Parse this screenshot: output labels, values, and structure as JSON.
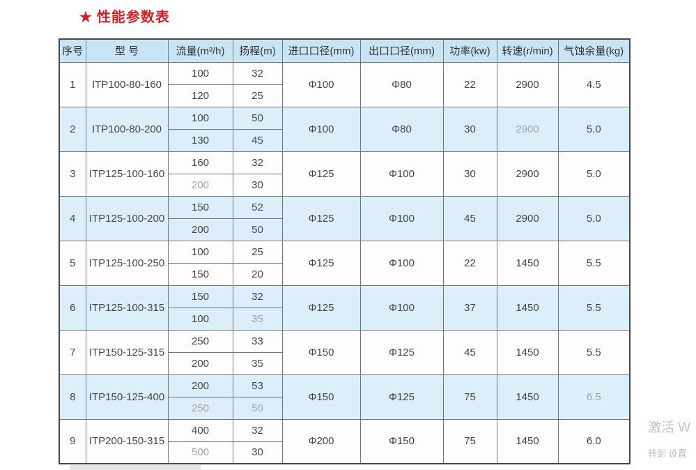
{
  "title": {
    "star": "★",
    "text": "性能参数表"
  },
  "colors": {
    "title_red": "#cc2127",
    "header_bg": "#c9e4f4",
    "alt_row_bg": "#dceef9",
    "border": "#757575",
    "muted_text": "#a3a3a3"
  },
  "table": {
    "headers": [
      "序号",
      "型 号",
      "流量(m³/h)",
      "扬程(m)",
      "进口口径(mm)",
      "出口口径(mm)",
      "功率(kw)",
      "转速(r/min)",
      "气蚀余量(kg)"
    ],
    "rows": [
      {
        "no": "1",
        "model": "ITP100-80-160",
        "flow": [
          "100",
          "120"
        ],
        "head": [
          "32",
          "25"
        ],
        "inlet": "Φ100",
        "outlet": "Φ80",
        "power": "22",
        "speed": "2900",
        "npsh": "4.5",
        "muted": []
      },
      {
        "no": "2",
        "model": "ITP100-80-200",
        "flow": [
          "100",
          "130"
        ],
        "head": [
          "50",
          "45"
        ],
        "inlet": "Φ100",
        "outlet": "Φ80",
        "power": "30",
        "speed": "2900",
        "npsh": "5.0",
        "muted": [
          "speed"
        ]
      },
      {
        "no": "3",
        "model": "ITP125-100-160",
        "flow": [
          "160",
          "200"
        ],
        "head": [
          "32",
          "30"
        ],
        "inlet": "Φ125",
        "outlet": "Φ100",
        "power": "30",
        "speed": "2900",
        "npsh": "5.0",
        "muted": [
          "flow2"
        ]
      },
      {
        "no": "4",
        "model": "ITP125-100-200",
        "flow": [
          "150",
          "200"
        ],
        "head": [
          "52",
          "50"
        ],
        "inlet": "Φ125",
        "outlet": "Φ100",
        "power": "45",
        "speed": "2900",
        "npsh": "5.0",
        "muted": []
      },
      {
        "no": "5",
        "model": "ITP125-100-250",
        "flow": [
          "100",
          "150"
        ],
        "head": [
          "25",
          "20"
        ],
        "inlet": "Φ125",
        "outlet": "Φ100",
        "power": "22",
        "speed": "1450",
        "npsh": "5.5",
        "muted": []
      },
      {
        "no": "6",
        "model": "ITP125-100-315",
        "flow": [
          "150",
          "100"
        ],
        "head": [
          "32",
          "35"
        ],
        "inlet": "Φ125",
        "outlet": "Φ100",
        "power": "37",
        "speed": "1450",
        "npsh": "5.5",
        "muted": [
          "head2"
        ]
      },
      {
        "no": "7",
        "model": "ITP150-125-315",
        "flow": [
          "250",
          "200"
        ],
        "head": [
          "33",
          "35"
        ],
        "inlet": "Φ150",
        "outlet": "Φ125",
        "power": "45",
        "speed": "1450",
        "npsh": "5.5",
        "muted": []
      },
      {
        "no": "8",
        "model": "ITP150-125-400",
        "flow": [
          "200",
          "250"
        ],
        "head": [
          "53",
          "50"
        ],
        "inlet": "Φ150",
        "outlet": "Φ125",
        "power": "75",
        "speed": "1450",
        "npsh": "6.5",
        "muted": [
          "flow2",
          "head2",
          "npsh"
        ]
      },
      {
        "no": "9",
        "model": "ITP200-150-315",
        "flow": [
          "400",
          "500"
        ],
        "head": [
          "32",
          "30"
        ],
        "inlet": "Φ200",
        "outlet": "Φ150",
        "power": "75",
        "speed": "1450",
        "npsh": "6.0",
        "muted": [
          "flow2"
        ]
      }
    ]
  },
  "watermark": {
    "line1": "激活 W",
    "line2": "转到 设置"
  }
}
